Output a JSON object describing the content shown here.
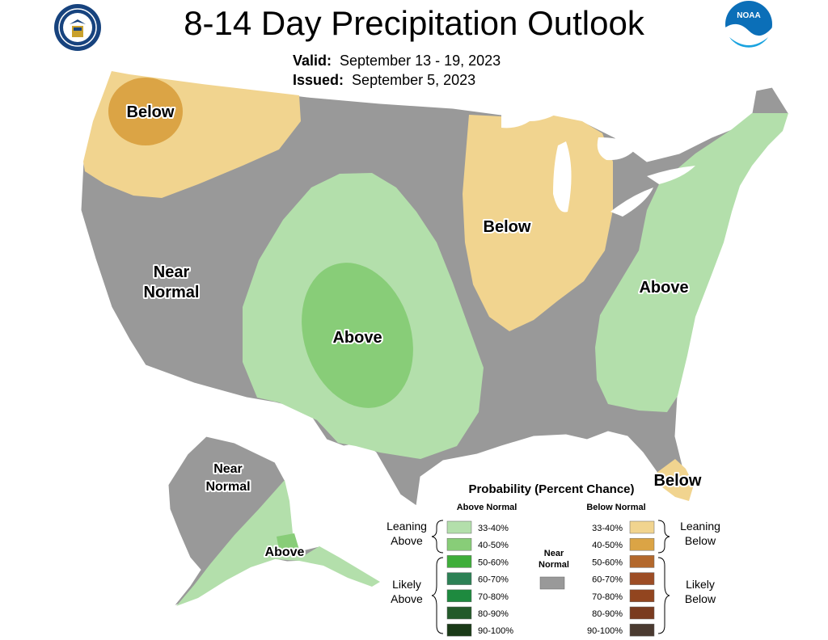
{
  "header": {
    "title": "8-14 Day Precipitation Outlook",
    "valid_label": "Valid:",
    "valid_value": "September 13 - 19, 2023",
    "issued_label": "Issued:",
    "issued_value": "September 5, 2023"
  },
  "logos": {
    "left": "department-of-commerce-seal",
    "right": "noaa-logo",
    "right_text": "NOAA"
  },
  "colors": {
    "near_normal": "#999999",
    "leaning_above": "#b3dfab",
    "above_40_50": "#88cd78",
    "leaning_below": "#f1d48f",
    "below_40_50": "#dba445",
    "great_lakes": "#ffffff",
    "border": "#ffffff"
  },
  "map": {
    "region_labels": {
      "below_nw": "Below",
      "near_normal_w_1": "Near",
      "near_normal_w_2": "Normal",
      "above_central": "Above",
      "below_midwest": "Below",
      "above_east": "Above",
      "below_florida": "Below",
      "near_normal_ak_1": "Near",
      "near_normal_ak_2": "Normal",
      "above_ak": "Above"
    }
  },
  "legend": {
    "title": "Probability (Percent Chance)",
    "above_header": "Above Normal",
    "below_header": "Below Normal",
    "near_normal_1": "Near",
    "near_normal_2": "Normal",
    "leaning_above_1": "Leaning",
    "leaning_above_2": "Above",
    "likely_above_1": "Likely",
    "likely_above_2": "Above",
    "leaning_below_1": "Leaning",
    "leaning_below_2": "Below",
    "likely_below_1": "Likely",
    "likely_below_2": "Below",
    "above_bins": [
      {
        "label": "33-40%",
        "color": "#b3dfab"
      },
      {
        "label": "40-50%",
        "color": "#88cd78"
      },
      {
        "label": "50-60%",
        "color": "#3fae3a"
      },
      {
        "label": "60-70%",
        "color": "#2c8155"
      },
      {
        "label": "70-80%",
        "color": "#1e8a3f"
      },
      {
        "label": "80-90%",
        "color": "#235a2a"
      },
      {
        "label": "90-100%",
        "color": "#1a3a17"
      }
    ],
    "below_bins": [
      {
        "label": "33-40%",
        "color": "#f1d48f"
      },
      {
        "label": "40-50%",
        "color": "#dba445"
      },
      {
        "label": "50-60%",
        "color": "#b3682c"
      },
      {
        "label": "60-70%",
        "color": "#9d4d25"
      },
      {
        "label": "70-80%",
        "color": "#92451f"
      },
      {
        "label": "80-90%",
        "color": "#7a3b1f"
      },
      {
        "label": "90-100%",
        "color": "#4a3a30"
      }
    ]
  }
}
